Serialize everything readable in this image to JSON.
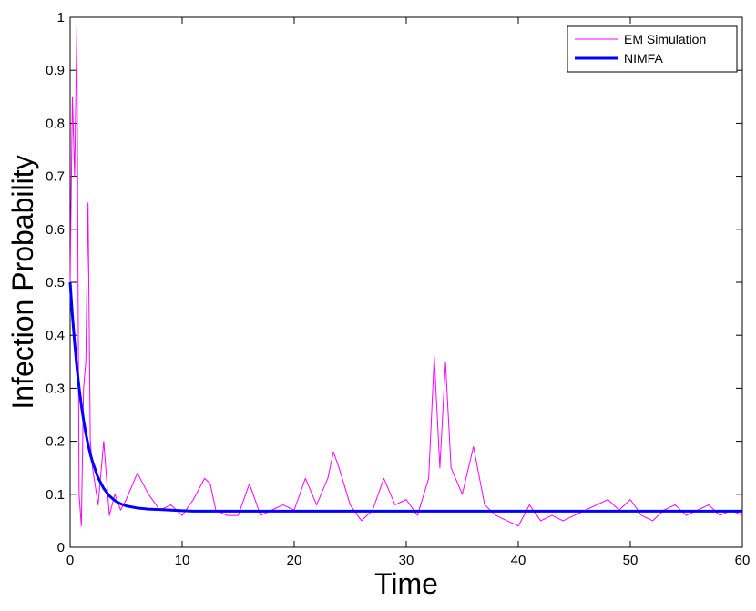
{
  "chart_data": {
    "type": "line",
    "xlabel": "Time",
    "ylabel": "Infection Probability",
    "x": [
      0,
      0.2,
      0.4,
      0.6,
      0.8,
      1,
      1.2,
      1.4,
      1.6,
      1.8,
      2,
      2.5,
      3,
      3.5,
      4,
      4.5,
      5,
      6,
      7,
      8,
      9,
      10,
      11,
      12,
      12.5,
      13,
      14,
      15,
      16,
      17,
      18,
      19,
      20,
      21,
      22,
      23,
      23.5,
      24,
      25,
      26,
      27,
      28,
      29,
      30,
      31,
      32,
      32.5,
      33,
      33.5,
      34,
      35,
      36,
      37,
      38,
      39,
      40,
      41,
      42,
      43,
      44,
      45,
      46,
      47,
      48,
      49,
      50,
      51,
      52,
      53,
      54,
      55,
      56,
      57,
      58,
      59,
      60
    ],
    "series": [
      {
        "name": "EM Simulation",
        "color": "#ff00ff",
        "width": 1,
        "values": [
          0.5,
          0.85,
          0.7,
          0.98,
          0.1,
          0.04,
          0.3,
          0.35,
          0.65,
          0.2,
          0.15,
          0.08,
          0.2,
          0.06,
          0.1,
          0.07,
          0.09,
          0.14,
          0.1,
          0.07,
          0.08,
          0.06,
          0.09,
          0.13,
          0.12,
          0.07,
          0.06,
          0.06,
          0.12,
          0.06,
          0.07,
          0.08,
          0.07,
          0.13,
          0.08,
          0.13,
          0.18,
          0.15,
          0.08,
          0.05,
          0.07,
          0.13,
          0.08,
          0.09,
          0.06,
          0.13,
          0.36,
          0.15,
          0.35,
          0.15,
          0.1,
          0.19,
          0.08,
          0.06,
          0.05,
          0.04,
          0.08,
          0.05,
          0.06,
          0.05,
          0.06,
          0.07,
          0.08,
          0.09,
          0.07,
          0.09,
          0.06,
          0.05,
          0.07,
          0.08,
          0.06,
          0.07,
          0.08,
          0.06,
          0.07,
          0.06
        ]
      },
      {
        "name": "NIMFA",
        "color": "#0000ff",
        "width": 3,
        "values": [
          0.5,
          0.438,
          0.386,
          0.34,
          0.301,
          0.268,
          0.24,
          0.215,
          0.194,
          0.176,
          0.161,
          0.131,
          0.111,
          0.097,
          0.088,
          0.082,
          0.078,
          0.074,
          0.072,
          0.071,
          0.07,
          0.069,
          0.068,
          0.068,
          0.068,
          0.068,
          0.068,
          0.068,
          0.068,
          0.068,
          0.068,
          0.068,
          0.068,
          0.068,
          0.068,
          0.068,
          0.068,
          0.068,
          0.068,
          0.068,
          0.068,
          0.068,
          0.068,
          0.068,
          0.068,
          0.068,
          0.068,
          0.068,
          0.068,
          0.068,
          0.068,
          0.068,
          0.068,
          0.068,
          0.068,
          0.068,
          0.068,
          0.068,
          0.068,
          0.068,
          0.068,
          0.068,
          0.068,
          0.068,
          0.068,
          0.068,
          0.068,
          0.068,
          0.068,
          0.068,
          0.068,
          0.068,
          0.068,
          0.068,
          0.068,
          0.068
        ]
      }
    ],
    "xlim": [
      0,
      60
    ],
    "xticks": [
      0,
      10,
      20,
      30,
      40,
      50,
      60
    ],
    "ylim": [
      0,
      1
    ],
    "yticks": [
      0,
      0.1,
      0.2,
      0.3,
      0.4,
      0.5,
      0.6,
      0.7,
      0.8,
      0.9,
      1
    ],
    "grid": false,
    "legend": "upper right"
  }
}
